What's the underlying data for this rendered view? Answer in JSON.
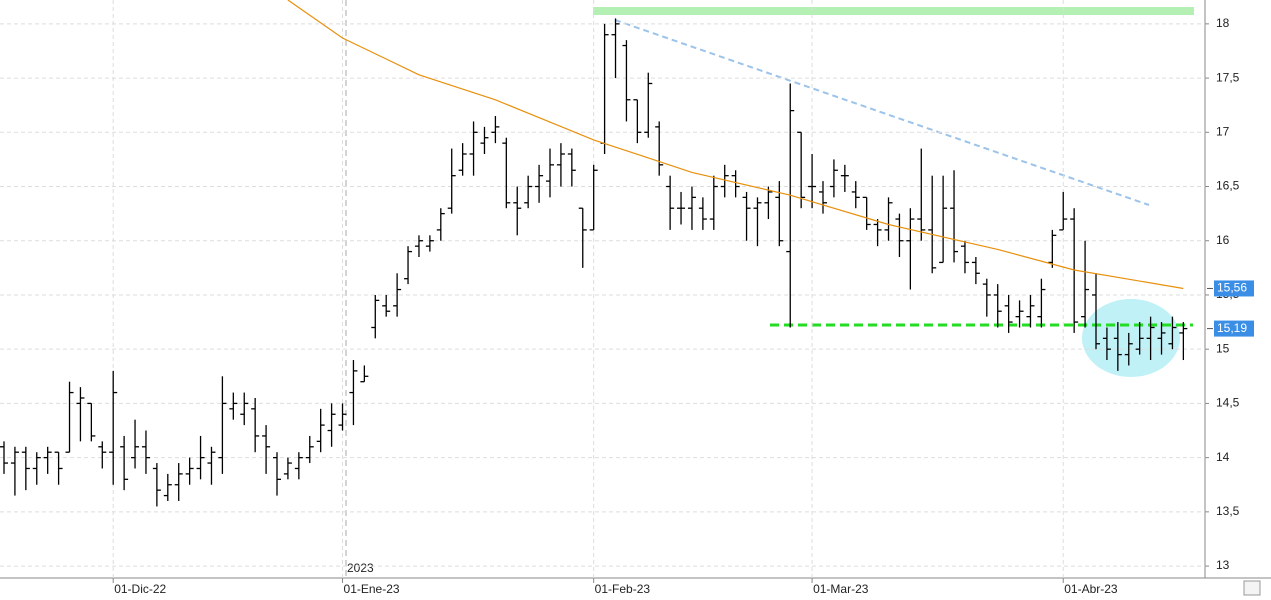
{
  "chart_data": {
    "type": "ohlc",
    "categories": [
      null,
      null,
      null,
      null,
      null,
      null,
      null,
      null,
      null,
      null,
      "01-Dic-22",
      null,
      null,
      null,
      null,
      null,
      null,
      null,
      null,
      null,
      null,
      null,
      null,
      null,
      null,
      null,
      null,
      null,
      null,
      null,
      null,
      "01-Ene-23",
      null,
      null,
      null,
      null,
      null,
      null,
      null,
      null,
      null,
      null,
      null,
      null,
      null,
      null,
      null,
      null,
      null,
      null,
      null,
      null,
      null,
      null,
      "01-Feb-23",
      null,
      null,
      null,
      null,
      null,
      null,
      null,
      null,
      null,
      null,
      null,
      null,
      null,
      null,
      null,
      null,
      null,
      null,
      null,
      "01-Mar-23",
      null,
      null,
      null,
      null,
      null,
      null,
      null,
      null,
      null,
      null,
      null,
      null,
      null,
      null,
      null,
      null,
      null,
      null,
      null,
      null,
      null,
      null,
      "01-Abr-23",
      null,
      null,
      null,
      null,
      null,
      null,
      null,
      null,
      null,
      null,
      null
    ],
    "open": [
      14.1,
      13.95,
      14.05,
      13.9,
      14.0,
      14.05,
      14.05,
      14.5,
      14.5,
      14.1,
      14.05,
      14.1,
      14.0,
      14.1,
      13.9,
      13.65,
      13.75,
      13.85,
      13.9,
      13.95,
      14.0,
      14.45,
      14.4,
      14.45,
      14.2,
      14.0,
      13.85,
      13.9,
      14.0,
      14.15,
      14.25,
      14.3,
      14.6,
      14.7,
      15.2,
      15.4,
      15.4,
      15.65,
      15.95,
      15.95,
      16.1,
      16.3,
      16.65,
      16.8,
      16.9,
      17.0,
      16.9,
      16.35,
      16.35,
      16.5,
      16.55,
      16.7,
      16.8,
      16.3,
      16.1,
      16.9,
      17.9,
      17.8,
      17.3,
      17.0,
      17.05,
      16.5,
      16.3,
      16.3,
      16.3,
      16.2,
      16.5,
      16.6,
      16.4,
      16.3,
      16.35,
      16.4,
      15.9,
      17.0,
      16.5,
      16.45,
      16.5,
      16.6,
      16.45,
      16.4,
      16.15,
      16.1,
      16.2,
      16.0,
      16.2,
      16.1,
      15.8,
      16.3,
      15.95,
      15.8,
      15.6,
      15.5,
      15.4,
      15.3,
      15.3,
      15.3,
      15.8,
      16.1,
      16.2,
      15.3,
      15.5,
      15.1,
      15.1,
      14.95,
      15.0,
      15.1,
      15.1,
      15.05,
      15.15
    ],
    "high": [
      14.15,
      14.1,
      14.1,
      14.05,
      14.1,
      14.05,
      14.7,
      14.65,
      14.5,
      14.15,
      14.8,
      14.2,
      14.35,
      14.25,
      13.95,
      13.85,
      13.95,
      14.0,
      14.2,
      14.1,
      14.75,
      14.6,
      14.6,
      14.55,
      14.3,
      14.05,
      14.0,
      14.05,
      14.2,
      14.45,
      14.5,
      14.5,
      14.9,
      14.85,
      15.5,
      15.5,
      15.7,
      15.95,
      16.05,
      16.05,
      16.3,
      16.85,
      16.9,
      17.1,
      17.05,
      17.15,
      16.95,
      16.5,
      16.6,
      16.7,
      16.85,
      16.9,
      16.85,
      16.3,
      16.7,
      18.0,
      18.05,
      17.85,
      17.3,
      17.55,
      17.1,
      16.6,
      16.45,
      16.5,
      16.4,
      16.6,
      16.7,
      16.65,
      16.45,
      16.4,
      16.5,
      16.55,
      17.45,
      17.0,
      16.8,
      16.55,
      16.75,
      16.7,
      16.55,
      16.4,
      16.2,
      16.4,
      16.25,
      16.3,
      16.85,
      16.6,
      16.6,
      16.65,
      16.0,
      15.85,
      15.65,
      15.6,
      15.5,
      15.45,
      15.5,
      15.65,
      16.1,
      16.45,
      16.3,
      16.0,
      15.7,
      15.2,
      15.25,
      15.15,
      15.25,
      15.3,
      15.25,
      15.3,
      15.25
    ],
    "low": [
      13.85,
      13.65,
      13.7,
      13.75,
      13.85,
      13.75,
      14.05,
      14.15,
      14.15,
      13.9,
      13.75,
      13.7,
      13.9,
      13.85,
      13.55,
      13.6,
      13.6,
      13.75,
      13.8,
      13.75,
      13.85,
      14.35,
      14.3,
      14.05,
      13.85,
      13.65,
      13.8,
      13.8,
      13.95,
      14.05,
      14.1,
      14.25,
      14.3,
      14.7,
      15.1,
      15.3,
      15.3,
      15.6,
      15.85,
      15.9,
      16.0,
      16.25,
      16.6,
      16.6,
      16.8,
      16.9,
      16.3,
      16.05,
      16.3,
      16.35,
      16.4,
      16.5,
      16.5,
      15.75,
      16.1,
      16.8,
      17.5,
      17.1,
      16.9,
      16.95,
      16.6,
      16.1,
      16.15,
      16.1,
      16.1,
      16.1,
      16.4,
      16.4,
      16.0,
      15.95,
      16.2,
      15.95,
      15.2,
      16.3,
      16.3,
      16.25,
      16.4,
      16.45,
      16.3,
      16.1,
      15.95,
      16.0,
      15.85,
      15.55,
      16.0,
      15.7,
      15.8,
      15.8,
      15.7,
      15.6,
      15.3,
      15.2,
      15.15,
      15.2,
      15.2,
      15.2,
      15.75,
      16.1,
      15.15,
      15.2,
      15.0,
      14.9,
      14.8,
      14.85,
      14.95,
      14.9,
      14.95,
      15.0,
      14.9
    ],
    "close": [
      13.95,
      14.05,
      13.9,
      14.0,
      14.05,
      13.9,
      14.6,
      14.55,
      14.2,
      14.05,
      14.6,
      13.8,
      14.1,
      14.0,
      13.7,
      13.75,
      13.85,
      13.9,
      14.0,
      14.05,
      14.5,
      14.5,
      14.5,
      14.2,
      14.1,
      13.8,
      13.95,
      14.0,
      14.1,
      14.3,
      14.4,
      14.4,
      14.8,
      14.75,
      15.45,
      15.35,
      15.55,
      15.9,
      16.0,
      16.0,
      16.25,
      16.6,
      16.8,
      17.0,
      16.95,
      17.05,
      16.35,
      16.3,
      16.5,
      16.6,
      16.7,
      16.8,
      16.65,
      16.1,
      16.65,
      17.9,
      18.0,
      17.3,
      17.0,
      17.45,
      16.7,
      16.3,
      16.3,
      16.4,
      16.2,
      16.5,
      16.6,
      16.5,
      16.3,
      16.35,
      16.45,
      16.0,
      17.2,
      16.4,
      16.5,
      16.35,
      16.65,
      16.6,
      16.4,
      16.15,
      16.1,
      16.35,
      16.0,
      16.2,
      16.1,
      15.75,
      16.3,
      15.9,
      15.8,
      15.7,
      15.5,
      15.35,
      15.25,
      15.35,
      15.4,
      15.55,
      16.05,
      16.2,
      15.25,
      15.55,
      15.05,
      15.0,
      14.95,
      15.05,
      15.1,
      15.2,
      15.15,
      15.2,
      15.19
    ],
    "color": "#000000",
    "ma": {
      "color": "#e8900c",
      "x": [
        26,
        31,
        38,
        45,
        54,
        63,
        72,
        81,
        91,
        98,
        108
      ],
      "values": [
        18.22,
        17.87,
        17.53,
        17.3,
        16.93,
        16.63,
        16.42,
        16.15,
        15.92,
        15.73,
        15.56
      ]
    },
    "markers": [
      {
        "value": 15.56,
        "label": "15,56"
      },
      {
        "value": 15.19,
        "label": "15,19"
      }
    ],
    "year_label": "2023",
    "ylim": [
      12.89,
      18.22
    ],
    "yticks": [
      13,
      {
        "value": 13.5,
        "label": "13,5"
      },
      14,
      {
        "value": 14.5,
        "label": "14,5"
      },
      15,
      {
        "value": 15.5,
        "label": "15,5"
      },
      16,
      {
        "value": 16.5,
        "label": "16,5"
      },
      17,
      {
        "value": 17.5,
        "label": "17,5"
      },
      18
    ],
    "grid": true
  }
}
